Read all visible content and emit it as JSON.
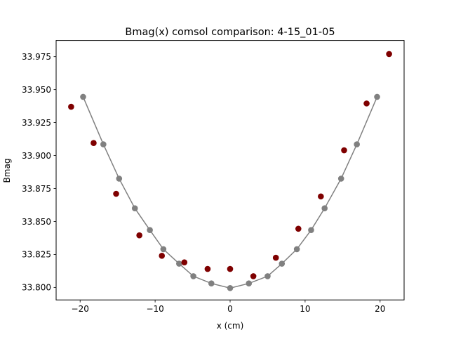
{
  "chart_data": {
    "type": "scatter",
    "title": "Bmag(x) comsol comparison: 4-15_01-05",
    "xlabel": "x (cm)",
    "ylabel": "Bmag",
    "xlim": [
      -23.2,
      23.2
    ],
    "ylim": [
      33.7905,
      33.9873
    ],
    "xticks": [
      -20,
      -10,
      0,
      10,
      20
    ],
    "xtick_labels": [
      "−20",
      "−10",
      "0",
      "10",
      "20"
    ],
    "yticks": [
      33.8,
      33.825,
      33.85,
      33.875,
      33.9,
      33.925,
      33.95,
      33.975
    ],
    "ytick_labels": [
      "33.800",
      "33.825",
      "33.850",
      "33.875",
      "33.900",
      "33.925",
      "33.950",
      "33.975"
    ],
    "grid": false,
    "series": [
      {
        "style": "line-markers",
        "color": "#808080",
        "x": [
          -19.6,
          -16.9,
          -14.8,
          -12.7,
          -10.7,
          -8.9,
          -6.8,
          -4.9,
          -2.5,
          0.0,
          2.5,
          5.0,
          6.9,
          8.9,
          10.8,
          12.6,
          14.8,
          16.9,
          19.6
        ],
        "y": [
          33.9445,
          33.9085,
          33.8825,
          33.86,
          33.8435,
          33.829,
          33.818,
          33.8085,
          33.803,
          33.7995,
          33.803,
          33.8085,
          33.818,
          33.829,
          33.8435,
          33.86,
          33.8825,
          33.9085,
          33.9445
        ]
      },
      {
        "style": "markers",
        "color": "#7f0000",
        "x": [
          -21.2,
          -18.2,
          -15.2,
          -12.1,
          -9.1,
          -6.1,
          -3.0,
          0.0,
          3.1,
          6.1,
          9.1,
          12.1,
          15.2,
          18.2,
          21.2
        ],
        "y": [
          33.937,
          33.9095,
          33.871,
          33.8395,
          33.824,
          33.819,
          33.814,
          33.814,
          33.8085,
          33.8225,
          33.8445,
          33.869,
          33.904,
          33.9395,
          33.977
        ]
      }
    ]
  }
}
